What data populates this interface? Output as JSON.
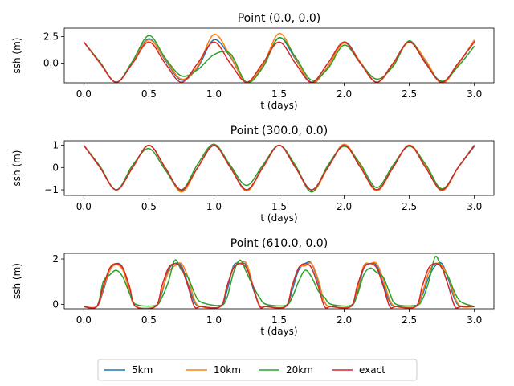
{
  "chart_data": [
    {
      "type": "line",
      "title": "Point (0.0, 0.0)",
      "xlabel": "t (days)",
      "ylabel": "ssh (m)",
      "xlim": [
        -0.15,
        3.15
      ],
      "ylim": [
        -1.85,
        3.3
      ],
      "xticks": [
        0.0,
        0.5,
        1.0,
        1.5,
        2.0,
        2.5,
        3.0
      ],
      "xtick_labels": [
        "0.0",
        "0.5",
        "1.0",
        "1.5",
        "2.0",
        "2.5",
        "3.0"
      ],
      "yticks": [
        0.0,
        2.5
      ],
      "ytick_labels": [
        "0.0",
        "2.5"
      ],
      "grid": false,
      "series": [
        {
          "name": "5km",
          "x": [
            0,
            0.125,
            0.25,
            0.375,
            0.5,
            0.625,
            0.75,
            0.875,
            1.0,
            1.125,
            1.25,
            1.375,
            1.5,
            1.625,
            1.75,
            1.875,
            2.0,
            2.125,
            2.25,
            2.375,
            2.5,
            2.625,
            2.75,
            2.875,
            3.0
          ],
          "y": [
            2.0,
            0.05,
            -1.8,
            0.1,
            2.3,
            0.3,
            -1.6,
            -0.4,
            2.2,
            0.6,
            -1.8,
            -0.3,
            2.4,
            0.4,
            -1.8,
            -0.3,
            2.0,
            0.1,
            -1.8,
            -0.1,
            2.0,
            0.2,
            -1.8,
            -0.1,
            2.1
          ]
        },
        {
          "name": "10km",
          "x": [
            0,
            0.125,
            0.25,
            0.375,
            0.5,
            0.625,
            0.75,
            0.875,
            1.0,
            1.125,
            1.25,
            1.375,
            1.5,
            1.625,
            1.75,
            1.875,
            2.0,
            2.125,
            2.25,
            2.375,
            2.5,
            2.625,
            2.75,
            2.875,
            3.0
          ],
          "y": [
            2.0,
            0.05,
            -1.8,
            0.1,
            2.2,
            0.4,
            -1.5,
            -0.3,
            2.7,
            0.7,
            -1.8,
            -0.2,
            2.8,
            0.5,
            -1.9,
            -0.3,
            1.9,
            0.1,
            -1.8,
            -0.1,
            2.0,
            0.3,
            -1.9,
            -0.1,
            2.2
          ]
        },
        {
          "name": "20km",
          "x": [
            0,
            0.125,
            0.25,
            0.375,
            0.5,
            0.625,
            0.75,
            0.875,
            1.0,
            1.125,
            1.25,
            1.375,
            1.5,
            1.625,
            1.75,
            1.875,
            2.0,
            2.125,
            2.25,
            2.375,
            2.5,
            2.625,
            2.75,
            2.875,
            3.0
          ],
          "y": [
            2.0,
            0.1,
            -1.8,
            0.2,
            2.6,
            0.5,
            -1.2,
            -0.6,
            0.8,
            0.9,
            -1.8,
            -0.4,
            2.4,
            0.6,
            -1.6,
            -0.5,
            1.7,
            0.0,
            -1.5,
            -0.3,
            2.1,
            0.0,
            -1.7,
            -0.3,
            1.6
          ]
        },
        {
          "name": "exact",
          "x": [
            0,
            0.125,
            0.25,
            0.375,
            0.5,
            0.625,
            0.75,
            0.875,
            1.0,
            1.125,
            1.25,
            1.375,
            1.5,
            1.625,
            1.75,
            1.875,
            2.0,
            2.125,
            2.25,
            2.375,
            2.5,
            2.625,
            2.75,
            2.875,
            3.0
          ],
          "y": [
            2.0,
            0.0,
            -1.8,
            0.0,
            2.0,
            0.0,
            -1.8,
            0.0,
            2.0,
            0.0,
            -1.8,
            0.0,
            2.0,
            0.0,
            -1.8,
            0.0,
            2.0,
            0.0,
            -1.8,
            0.0,
            2.0,
            0.0,
            -1.8,
            0.0,
            2.0
          ]
        }
      ]
    },
    {
      "type": "line",
      "title": "Point (300.0, 0.0)",
      "xlabel": "t (days)",
      "ylabel": "ssh (m)",
      "xlim": [
        -0.15,
        3.15
      ],
      "ylim": [
        -1.25,
        1.2
      ],
      "xticks": [
        0.0,
        0.5,
        1.0,
        1.5,
        2.0,
        2.5,
        3.0
      ],
      "xtick_labels": [
        "0.0",
        "0.5",
        "1.0",
        "1.5",
        "2.0",
        "2.5",
        "3.0"
      ],
      "yticks": [
        -1,
        0,
        1
      ],
      "ytick_labels": [
        "−1",
        "0",
        "1"
      ],
      "grid": false,
      "series": [
        {
          "name": "5km",
          "x": [
            0,
            0.125,
            0.25,
            0.375,
            0.5,
            0.625,
            0.75,
            0.875,
            1.0,
            1.125,
            1.25,
            1.375,
            1.5,
            1.625,
            1.75,
            1.875,
            2.0,
            2.125,
            2.25,
            2.375,
            2.5,
            2.625,
            2.75,
            2.875,
            3.0
          ],
          "y": [
            1.0,
            0.0,
            -1.0,
            0.0,
            1.0,
            0.0,
            -1.05,
            0.0,
            0.98,
            0.05,
            -1.0,
            0.0,
            1.0,
            0.05,
            -1.0,
            0.0,
            1.0,
            0.05,
            -1.0,
            0.0,
            1.0,
            0.1,
            -1.0,
            0.0,
            0.95
          ]
        },
        {
          "name": "10km",
          "x": [
            0,
            0.125,
            0.25,
            0.375,
            0.5,
            0.625,
            0.75,
            0.875,
            1.0,
            1.125,
            1.25,
            1.375,
            1.5,
            1.625,
            1.75,
            1.875,
            2.0,
            2.125,
            2.25,
            2.375,
            2.5,
            2.625,
            2.75,
            2.875,
            3.0
          ],
          "y": [
            1.0,
            0.0,
            -1.0,
            0.0,
            1.0,
            0.0,
            -1.1,
            0.0,
            1.0,
            0.05,
            -1.05,
            0.0,
            1.0,
            0.05,
            -1.1,
            0.0,
            1.05,
            0.05,
            -1.05,
            0.0,
            1.0,
            0.1,
            -1.05,
            0.0,
            1.0
          ]
        },
        {
          "name": "20km",
          "x": [
            0,
            0.125,
            0.25,
            0.375,
            0.5,
            0.625,
            0.75,
            0.875,
            1.0,
            1.125,
            1.25,
            1.375,
            1.5,
            1.625,
            1.75,
            1.875,
            2.0,
            2.125,
            2.25,
            2.375,
            2.5,
            2.625,
            2.75,
            2.875,
            3.0
          ],
          "y": [
            1.0,
            0.05,
            -1.0,
            0.1,
            0.85,
            -0.1,
            -1.0,
            0.15,
            1.05,
            0.1,
            -0.8,
            0.1,
            1.0,
            0.1,
            -1.1,
            0.1,
            0.95,
            0.15,
            -0.9,
            0.1,
            0.95,
            0.15,
            -0.95,
            0.0,
            1.0
          ]
        },
        {
          "name": "exact",
          "x": [
            0,
            0.125,
            0.25,
            0.375,
            0.5,
            0.625,
            0.75,
            0.875,
            1.0,
            1.125,
            1.25,
            1.375,
            1.5,
            1.625,
            1.75,
            1.875,
            2.0,
            2.125,
            2.25,
            2.375,
            2.5,
            2.625,
            2.75,
            2.875,
            3.0
          ],
          "y": [
            1.0,
            0.0,
            -1.0,
            0.0,
            1.0,
            0.0,
            -1.0,
            0.0,
            1.0,
            0.0,
            -1.0,
            0.0,
            1.0,
            0.0,
            -1.0,
            0.0,
            1.0,
            0.0,
            -1.0,
            0.0,
            1.0,
            0.0,
            -1.0,
            0.0,
            1.0
          ]
        }
      ]
    },
    {
      "type": "line",
      "title": "Point (610.0, 0.0)",
      "xlabel": "t (days)",
      "ylabel": "ssh (m)",
      "xlim": [
        -0.15,
        3.15
      ],
      "ylim": [
        -0.2,
        2.25
      ],
      "xticks": [
        0.0,
        0.5,
        1.0,
        1.5,
        2.0,
        2.5,
        3.0
      ],
      "xtick_labels": [
        "0.0",
        "0.5",
        "1.0",
        "1.5",
        "2.0",
        "2.5",
        "3.0"
      ],
      "yticks": [
        0,
        2
      ],
      "ytick_labels": [
        "0",
        "2"
      ],
      "grid": false,
      "series": [
        {
          "name": "5km",
          "x": [
            0,
            0.1,
            0.15,
            0.2,
            0.25,
            0.3,
            0.35,
            0.4,
            0.55,
            0.6,
            0.65,
            0.7,
            0.75,
            0.8,
            0.85,
            0.9,
            1.05,
            1.1,
            1.15,
            1.2,
            1.25,
            1.3,
            1.35,
            1.4,
            1.55,
            1.6,
            1.65,
            1.7,
            1.75,
            1.8,
            1.85,
            1.9,
            2.05,
            2.1,
            2.15,
            2.2,
            2.25,
            2.3,
            2.35,
            2.4,
            2.55,
            2.6,
            2.65,
            2.7,
            2.75,
            2.8,
            2.85,
            2.9,
            3.0
          ],
          "y": [
            -0.1,
            -0.1,
            0.6,
            1.5,
            1.8,
            1.6,
            0.6,
            -0.1,
            -0.1,
            0.5,
            1.5,
            1.8,
            1.7,
            0.9,
            0.1,
            -0.1,
            -0.1,
            0.6,
            1.7,
            1.8,
            1.7,
            0.7,
            -0.05,
            -0.1,
            -0.1,
            0.6,
            1.5,
            1.8,
            1.8,
            1.0,
            0.1,
            -0.1,
            -0.1,
            0.5,
            1.6,
            1.8,
            1.7,
            0.9,
            0.1,
            -0.1,
            -0.1,
            0.4,
            1.2,
            1.7,
            1.8,
            1.1,
            0.2,
            -0.1,
            -0.1
          ]
        },
        {
          "name": "10km",
          "x": [
            0,
            0.1,
            0.15,
            0.2,
            0.25,
            0.3,
            0.35,
            0.4,
            0.55,
            0.6,
            0.65,
            0.7,
            0.75,
            0.8,
            0.85,
            0.9,
            1.05,
            1.1,
            1.15,
            1.2,
            1.25,
            1.3,
            1.35,
            1.4,
            1.55,
            1.6,
            1.65,
            1.7,
            1.75,
            1.8,
            1.85,
            1.9,
            2.05,
            2.1,
            2.15,
            2.2,
            2.25,
            2.3,
            2.35,
            2.4,
            2.55,
            2.6,
            2.65,
            2.7,
            2.75,
            2.8,
            2.85,
            2.9,
            3.0
          ],
          "y": [
            -0.1,
            -0.1,
            0.7,
            1.5,
            1.75,
            1.5,
            0.6,
            -0.1,
            -0.1,
            0.6,
            1.4,
            1.7,
            1.8,
            1.2,
            0.2,
            -0.1,
            -0.1,
            0.8,
            1.6,
            1.8,
            1.8,
            0.8,
            -0.05,
            -0.1,
            -0.1,
            0.8,
            1.6,
            1.7,
            1.8,
            1.1,
            0.1,
            -0.1,
            -0.1,
            0.6,
            1.7,
            1.8,
            1.8,
            1.1,
            0.2,
            -0.1,
            -0.1,
            0.5,
            1.4,
            1.8,
            1.7,
            1.2,
            0.3,
            -0.1,
            -0.1
          ]
        },
        {
          "name": "20km",
          "x": [
            0,
            0.1,
            0.15,
            0.2,
            0.25,
            0.3,
            0.35,
            0.4,
            0.55,
            0.6,
            0.65,
            0.7,
            0.75,
            0.8,
            0.85,
            0.9,
            1.05,
            1.1,
            1.15,
            1.2,
            1.25,
            1.3,
            1.35,
            1.4,
            1.55,
            1.6,
            1.65,
            1.7,
            1.75,
            1.8,
            1.85,
            1.9,
            2.05,
            2.1,
            2.15,
            2.2,
            2.25,
            2.3,
            2.35,
            2.4,
            2.55,
            2.6,
            2.65,
            2.7,
            2.75,
            2.8,
            2.85,
            2.9,
            3.0
          ],
          "y": [
            -0.1,
            -0.1,
            1.0,
            1.3,
            1.5,
            1.2,
            0.5,
            0.0,
            -0.05,
            0.3,
            1.0,
            1.95,
            1.5,
            1.2,
            0.5,
            0.1,
            -0.05,
            0.3,
            1.4,
            1.95,
            1.4,
            0.8,
            0.3,
            0.0,
            -0.05,
            0.3,
            1.0,
            1.5,
            1.2,
            0.6,
            0.3,
            0.0,
            -0.05,
            0.4,
            1.3,
            1.6,
            1.4,
            1.2,
            0.5,
            0.0,
            -0.05,
            0.2,
            1.0,
            2.1,
            1.6,
            1.2,
            0.5,
            0.1,
            -0.1
          ]
        },
        {
          "name": "exact",
          "x": [
            0,
            0.1,
            0.15,
            0.2,
            0.25,
            0.3,
            0.35,
            0.4,
            0.55,
            0.6,
            0.65,
            0.7,
            0.75,
            0.8,
            0.85,
            0.9,
            1.05,
            1.1,
            1.15,
            1.2,
            1.25,
            1.3,
            1.35,
            1.4,
            1.55,
            1.6,
            1.65,
            1.7,
            1.75,
            1.8,
            1.85,
            1.9,
            2.05,
            2.1,
            2.15,
            2.2,
            2.25,
            2.3,
            2.35,
            2.4,
            2.55,
            2.6,
            2.65,
            2.7,
            2.75,
            2.8,
            2.85,
            2.9,
            3.0
          ],
          "y": [
            -0.1,
            -0.1,
            0.8,
            1.6,
            1.8,
            1.6,
            0.8,
            -0.1,
            -0.1,
            0.8,
            1.6,
            1.8,
            1.6,
            0.8,
            -0.1,
            -0.1,
            -0.1,
            0.8,
            1.6,
            1.8,
            1.6,
            0.8,
            -0.1,
            -0.1,
            -0.1,
            0.8,
            1.6,
            1.8,
            1.6,
            0.8,
            -0.1,
            -0.1,
            -0.1,
            0.8,
            1.6,
            1.8,
            1.6,
            0.8,
            -0.1,
            -0.1,
            -0.1,
            0.8,
            1.6,
            1.8,
            1.6,
            0.8,
            -0.1,
            -0.1,
            -0.1
          ]
        }
      ]
    }
  ],
  "legend": {
    "entries": [
      "5km",
      "10km",
      "20km",
      "exact"
    ],
    "placement": "bottom-center"
  },
  "colors": {
    "5km": "#1f77b4",
    "10km": "#ff7f0e",
    "20km": "#2ca02c",
    "exact": "#d62728"
  }
}
